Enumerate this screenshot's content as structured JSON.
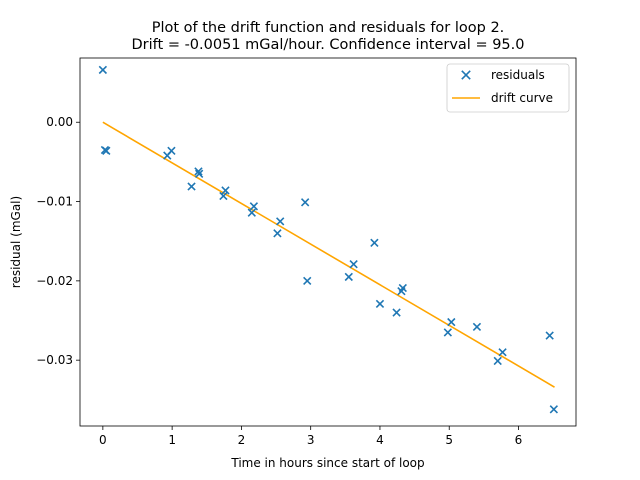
{
  "chart_data": {
    "type": "scatter",
    "title": "Plot of the drift function and residuals for loop 2.",
    "subtitle": "Drift = -0.0051 mGal/hour.  Confidence interval = 95.0",
    "xlabel": "Time in hours since start of loop",
    "ylabel": "residual (mGal)",
    "xlim": [
      -0.33,
      6.83
    ],
    "ylim": [
      -0.0383,
      0.0081
    ],
    "xticks": [
      0,
      1,
      2,
      3,
      4,
      5,
      6
    ],
    "xtick_labels": [
      "0",
      "1",
      "2",
      "3",
      "4",
      "5",
      "6"
    ],
    "yticks": [
      0.0,
      -0.01,
      -0.02,
      -0.03
    ],
    "ytick_labels": [
      "0.00",
      "−0.01",
      "−0.02",
      "−0.03"
    ],
    "grid": false,
    "legend": "top-right",
    "series": [
      {
        "name": "residuals",
        "kind": "scatter",
        "marker": "x",
        "color": "#1f77b4",
        "points": [
          [
            0.0,
            0.0066
          ],
          [
            0.03,
            -0.0035
          ],
          [
            0.05,
            -0.0036
          ],
          [
            0.93,
            -0.0042
          ],
          [
            0.99,
            -0.0036
          ],
          [
            1.28,
            -0.0081
          ],
          [
            1.38,
            -0.0062
          ],
          [
            1.39,
            -0.0065
          ],
          [
            1.74,
            -0.0093
          ],
          [
            1.77,
            -0.0086
          ],
          [
            2.15,
            -0.0114
          ],
          [
            2.18,
            -0.0106
          ],
          [
            2.52,
            -0.014
          ],
          [
            2.56,
            -0.0125
          ],
          [
            2.92,
            -0.0101
          ],
          [
            2.95,
            -0.02
          ],
          [
            3.55,
            -0.0195
          ],
          [
            3.62,
            -0.0179
          ],
          [
            3.92,
            -0.0152
          ],
          [
            4.0,
            -0.0229
          ],
          [
            4.24,
            -0.024
          ],
          [
            4.31,
            -0.0213
          ],
          [
            4.33,
            -0.0209
          ],
          [
            4.98,
            -0.0265
          ],
          [
            5.03,
            -0.0252
          ],
          [
            5.4,
            -0.0258
          ],
          [
            5.7,
            -0.0301
          ],
          [
            5.77,
            -0.029
          ],
          [
            6.45,
            -0.0269
          ],
          [
            6.51,
            -0.0362
          ]
        ]
      },
      {
        "name": "drift curve",
        "kind": "line",
        "color": "#ffa500",
        "points": [
          [
            0.0,
            0.0
          ],
          [
            6.52,
            -0.0334
          ]
        ]
      }
    ]
  }
}
